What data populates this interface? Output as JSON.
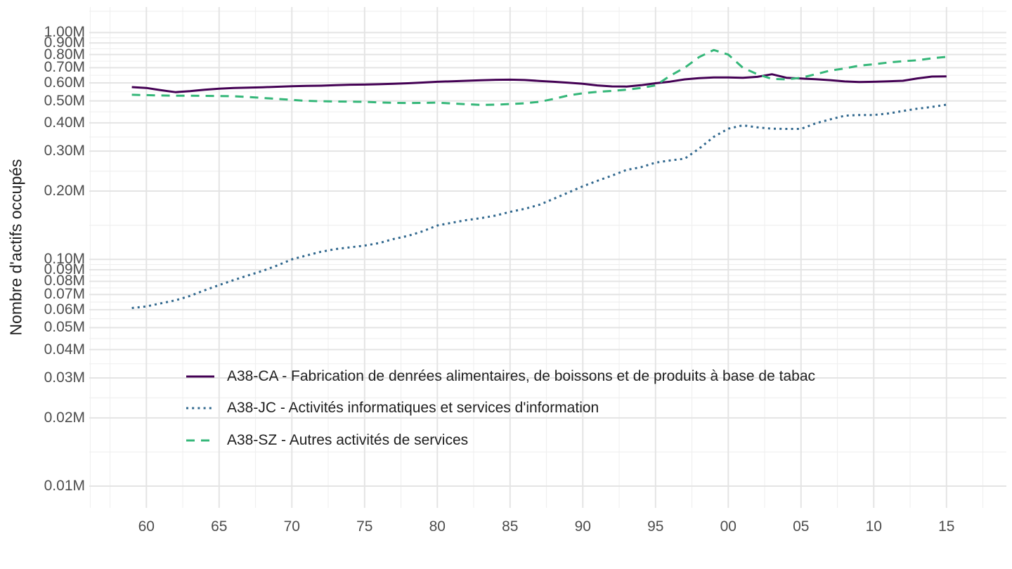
{
  "figure": {
    "background": "#FFFFFF",
    "grid_major_color": "#E4E4E4",
    "grid_minor_color": "#F0F0F0",
    "tick_label_color": "#4D4D4D",
    "text_color": "#1F1F1F"
  },
  "y_axis": {
    "title": "Nombre d'actifs occupés",
    "ticks": [
      {
        "label": "1.00M",
        "value": 1.0
      },
      {
        "label": "0.90M",
        "value": 0.9
      },
      {
        "label": "0.80M",
        "value": 0.8
      },
      {
        "label": "0.70M",
        "value": 0.7
      },
      {
        "label": "0.60M",
        "value": 0.6
      },
      {
        "label": "0.50M",
        "value": 0.5
      },
      {
        "label": "0.40M",
        "value": 0.4
      },
      {
        "label": "0.30M",
        "value": 0.3
      },
      {
        "label": "0.20M",
        "value": 0.2
      },
      {
        "label": "0.10M",
        "value": 0.1
      },
      {
        "label": "0.09M",
        "value": 0.09
      },
      {
        "label": "0.08M",
        "value": 0.08
      },
      {
        "label": "0.07M",
        "value": 0.07
      },
      {
        "label": "0.06M",
        "value": 0.06
      },
      {
        "label": "0.05M",
        "value": 0.05
      },
      {
        "label": "0.04M",
        "value": 0.04
      },
      {
        "label": "0.03M",
        "value": 0.03
      },
      {
        "label": "0.02M",
        "value": 0.02
      },
      {
        "label": "0.01M",
        "value": 0.01
      }
    ]
  },
  "x_axis": {
    "ticks": [
      {
        "label": "60",
        "year": 1960
      },
      {
        "label": "65",
        "year": 1965
      },
      {
        "label": "70",
        "year": 1970
      },
      {
        "label": "75",
        "year": 1975
      },
      {
        "label": "80",
        "year": 1980
      },
      {
        "label": "85",
        "year": 1985
      },
      {
        "label": "90",
        "year": 1990
      },
      {
        "label": "95",
        "year": 1995
      },
      {
        "label": "00",
        "year": 2000
      },
      {
        "label": "05",
        "year": 2005
      },
      {
        "label": "10",
        "year": 2010
      },
      {
        "label": "15",
        "year": 2015
      }
    ]
  },
  "legend": {
    "items": [
      {
        "label": "A38-CA - Fabrication de denrées alimentaires, de boissons et de produits à base de tabac",
        "color": "#440154",
        "linetype": "solid"
      },
      {
        "label": "A38-JC - Activités informatiques et services d'information",
        "color": "#31688E",
        "linetype": "dotted"
      },
      {
        "label": "A38-SZ - Autres activités de services",
        "color": "#35B779",
        "linetype": "dashed"
      }
    ]
  },
  "chart_data": {
    "type": "line",
    "title": "",
    "xlabel": "",
    "ylabel": "Nombre d'actifs occupés",
    "y_scale": "log10",
    "y_unit": "millions of employed persons",
    "ylim": [
      0.0079,
      1.26
    ],
    "xlim": [
      1956,
      2019
    ],
    "grid": "major+minor",
    "legend_position": "inside-bottom-left",
    "x": [
      1959,
      1960,
      1961,
      1962,
      1963,
      1964,
      1965,
      1966,
      1967,
      1968,
      1969,
      1970,
      1971,
      1972,
      1973,
      1974,
      1975,
      1976,
      1977,
      1978,
      1979,
      1980,
      1981,
      1982,
      1983,
      1984,
      1985,
      1986,
      1987,
      1988,
      1989,
      1990,
      1991,
      1992,
      1993,
      1994,
      1995,
      1996,
      1997,
      1998,
      1999,
      2000,
      2001,
      2002,
      2003,
      2004,
      2005,
      2006,
      2007,
      2008,
      2009,
      2010,
      2011,
      2012,
      2013,
      2014,
      2015
    ],
    "series": [
      {
        "name": "A38-CA - Fabrication de denrées alimentaires, de boissons et de produits à base de tabac",
        "short": "A38-CA",
        "color": "#440154",
        "linetype": "solid",
        "values": [
          0.575,
          0.57,
          0.557,
          0.546,
          0.552,
          0.56,
          0.566,
          0.57,
          0.572,
          0.574,
          0.577,
          0.58,
          0.582,
          0.583,
          0.586,
          0.589,
          0.59,
          0.592,
          0.595,
          0.598,
          0.602,
          0.607,
          0.61,
          0.613,
          0.616,
          0.619,
          0.62,
          0.618,
          0.612,
          0.607,
          0.601,
          0.595,
          0.585,
          0.579,
          0.578,
          0.586,
          0.598,
          0.608,
          0.622,
          0.63,
          0.634,
          0.634,
          0.632,
          0.638,
          0.655,
          0.632,
          0.627,
          0.623,
          0.617,
          0.609,
          0.605,
          0.607,
          0.61,
          0.613,
          0.628,
          0.64,
          0.641
        ]
      },
      {
        "name": "A38-JC - Activités informatiques et services d'information",
        "short": "A38-JC",
        "color": "#31688E",
        "linetype": "dotted",
        "values": [
          0.061,
          0.062,
          0.064,
          0.066,
          0.069,
          0.073,
          0.077,
          0.081,
          0.085,
          0.089,
          0.094,
          0.1,
          0.104,
          0.108,
          0.111,
          0.113,
          0.115,
          0.118,
          0.123,
          0.127,
          0.133,
          0.141,
          0.145,
          0.149,
          0.152,
          0.156,
          0.162,
          0.167,
          0.174,
          0.185,
          0.197,
          0.21,
          0.222,
          0.234,
          0.248,
          0.255,
          0.267,
          0.273,
          0.278,
          0.308,
          0.347,
          0.377,
          0.39,
          0.382,
          0.377,
          0.376,
          0.376,
          0.398,
          0.414,
          0.43,
          0.433,
          0.433,
          0.44,
          0.451,
          0.462,
          0.47,
          0.481
        ]
      },
      {
        "name": "A38-SZ - Autres activités de services",
        "short": "A38-SZ",
        "color": "#35B779",
        "linetype": "dashed",
        "values": [
          0.532,
          0.53,
          0.528,
          0.527,
          0.527,
          0.526,
          0.525,
          0.524,
          0.52,
          0.515,
          0.51,
          0.505,
          0.5,
          0.498,
          0.497,
          0.496,
          0.495,
          0.492,
          0.49,
          0.489,
          0.49,
          0.491,
          0.487,
          0.483,
          0.48,
          0.481,
          0.484,
          0.488,
          0.495,
          0.51,
          0.528,
          0.54,
          0.548,
          0.553,
          0.56,
          0.57,
          0.585,
          0.645,
          0.7,
          0.78,
          0.838,
          0.8,
          0.7,
          0.655,
          0.625,
          0.622,
          0.632,
          0.655,
          0.68,
          0.695,
          0.715,
          0.725,
          0.738,
          0.748,
          0.755,
          0.77,
          0.782
        ]
      }
    ]
  }
}
